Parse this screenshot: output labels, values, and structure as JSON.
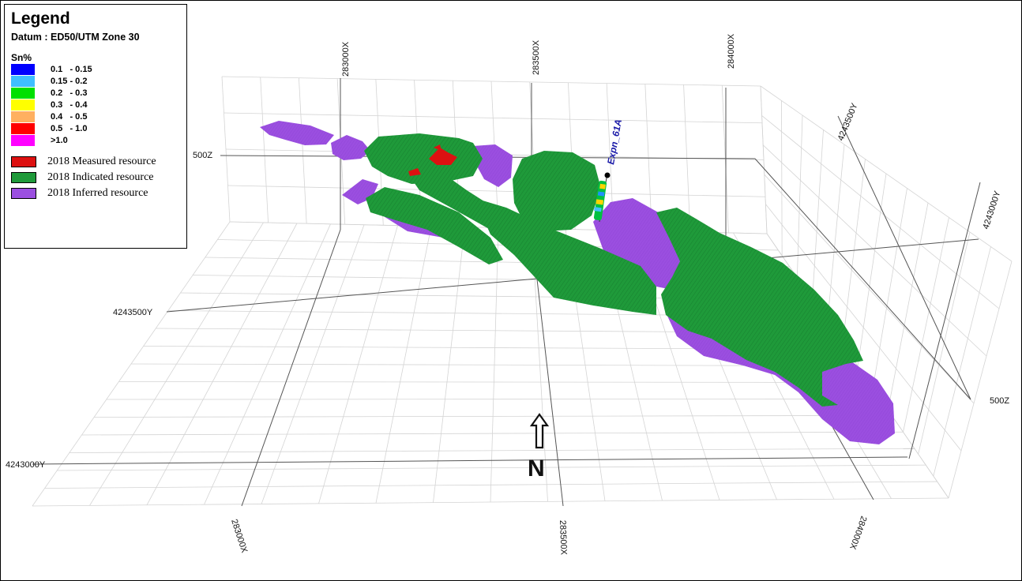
{
  "legend": {
    "title": "Legend",
    "datum": "Datum : ED50/UTM Zone 30",
    "grade_title": "Sn%",
    "grades": [
      {
        "label": "0.1   - 0.15",
        "color": "#0000ff"
      },
      {
        "label": "0.15 - 0.2",
        "color": "#3fbfff"
      },
      {
        "label": "0.2   - 0.3",
        "color": "#00e000"
      },
      {
        "label": "0.3   - 0.4",
        "color": "#ffff00"
      },
      {
        "label": "0.4   - 0.5",
        "color": "#ffb060"
      },
      {
        "label": "0.5   - 1.0",
        "color": "#ff0000"
      },
      {
        "label": ">1.0",
        "color": "#ff00ff"
      }
    ],
    "resources": [
      {
        "label": "2018 Measured resource",
        "color": "#dd1111"
      },
      {
        "label": "2018 Indicated resource",
        "color": "#1f9a3a"
      },
      {
        "label": "2018 Inferred resource",
        "color": "#9b4fe0"
      }
    ]
  },
  "axes": {
    "top_x": [
      "283000X",
      "283500X",
      "284000X"
    ],
    "bottom_x": [
      "283000X",
      "283500X",
      "284000X"
    ],
    "right_y": [
      "4243500Y",
      "4243000Y"
    ],
    "left_y": [
      "4243500Y",
      "4243000Y"
    ],
    "z": [
      "500Z",
      "500Z"
    ]
  },
  "drillhole": {
    "label": "Expn_61A"
  },
  "north": {
    "label": "N"
  },
  "colors": {
    "indicated": "#1f9a3a",
    "inferred": "#9b4fe0",
    "measured": "#dd1111",
    "grid": "#d4d4d4",
    "axis": "#555555"
  }
}
